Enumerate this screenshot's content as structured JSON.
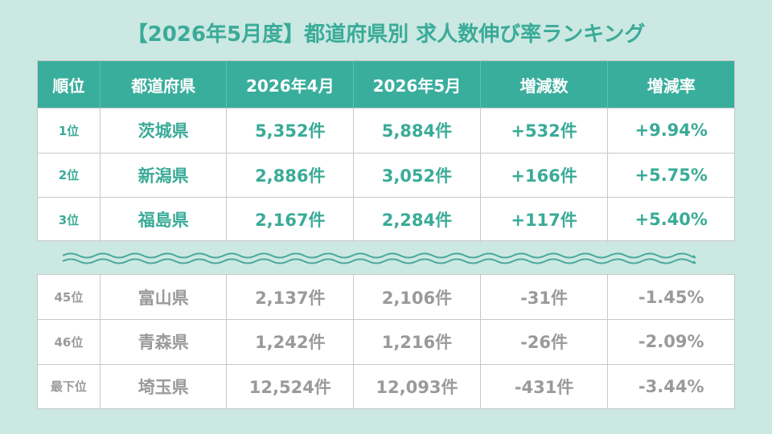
{
  "header": {
    "title": "【2026年5月度】都道府県別 求人数伸び率ランキング"
  },
  "table": {
    "columns": [
      "順位",
      "都道府県",
      "2026年4月",
      "2026年5月",
      "増減数",
      "増減率"
    ],
    "top_rows": [
      [
        "1位",
        "茨城県",
        "5,352件",
        "5,884件",
        "+532件",
        "+9.94%"
      ],
      [
        "2位",
        "新潟県",
        "2,886件",
        "3,052件",
        "+166件",
        "+5.75%"
      ],
      [
        "3位",
        "福島県",
        "2,167件",
        "2,284件",
        "+117件",
        "+5.40%"
      ]
    ],
    "bottom_rows": [
      [
        "45位",
        "富山県",
        "2,137件",
        "2,106件",
        "-31件",
        "-1.45%"
      ],
      [
        "46位",
        "青森県",
        "1,242件",
        "1,216件",
        "-26件",
        "-2.09%"
      ],
      [
        "最下位",
        "埼玉県",
        "12,524件",
        "12,093件",
        "-431件",
        "-3.44%"
      ]
    ]
  }
}
